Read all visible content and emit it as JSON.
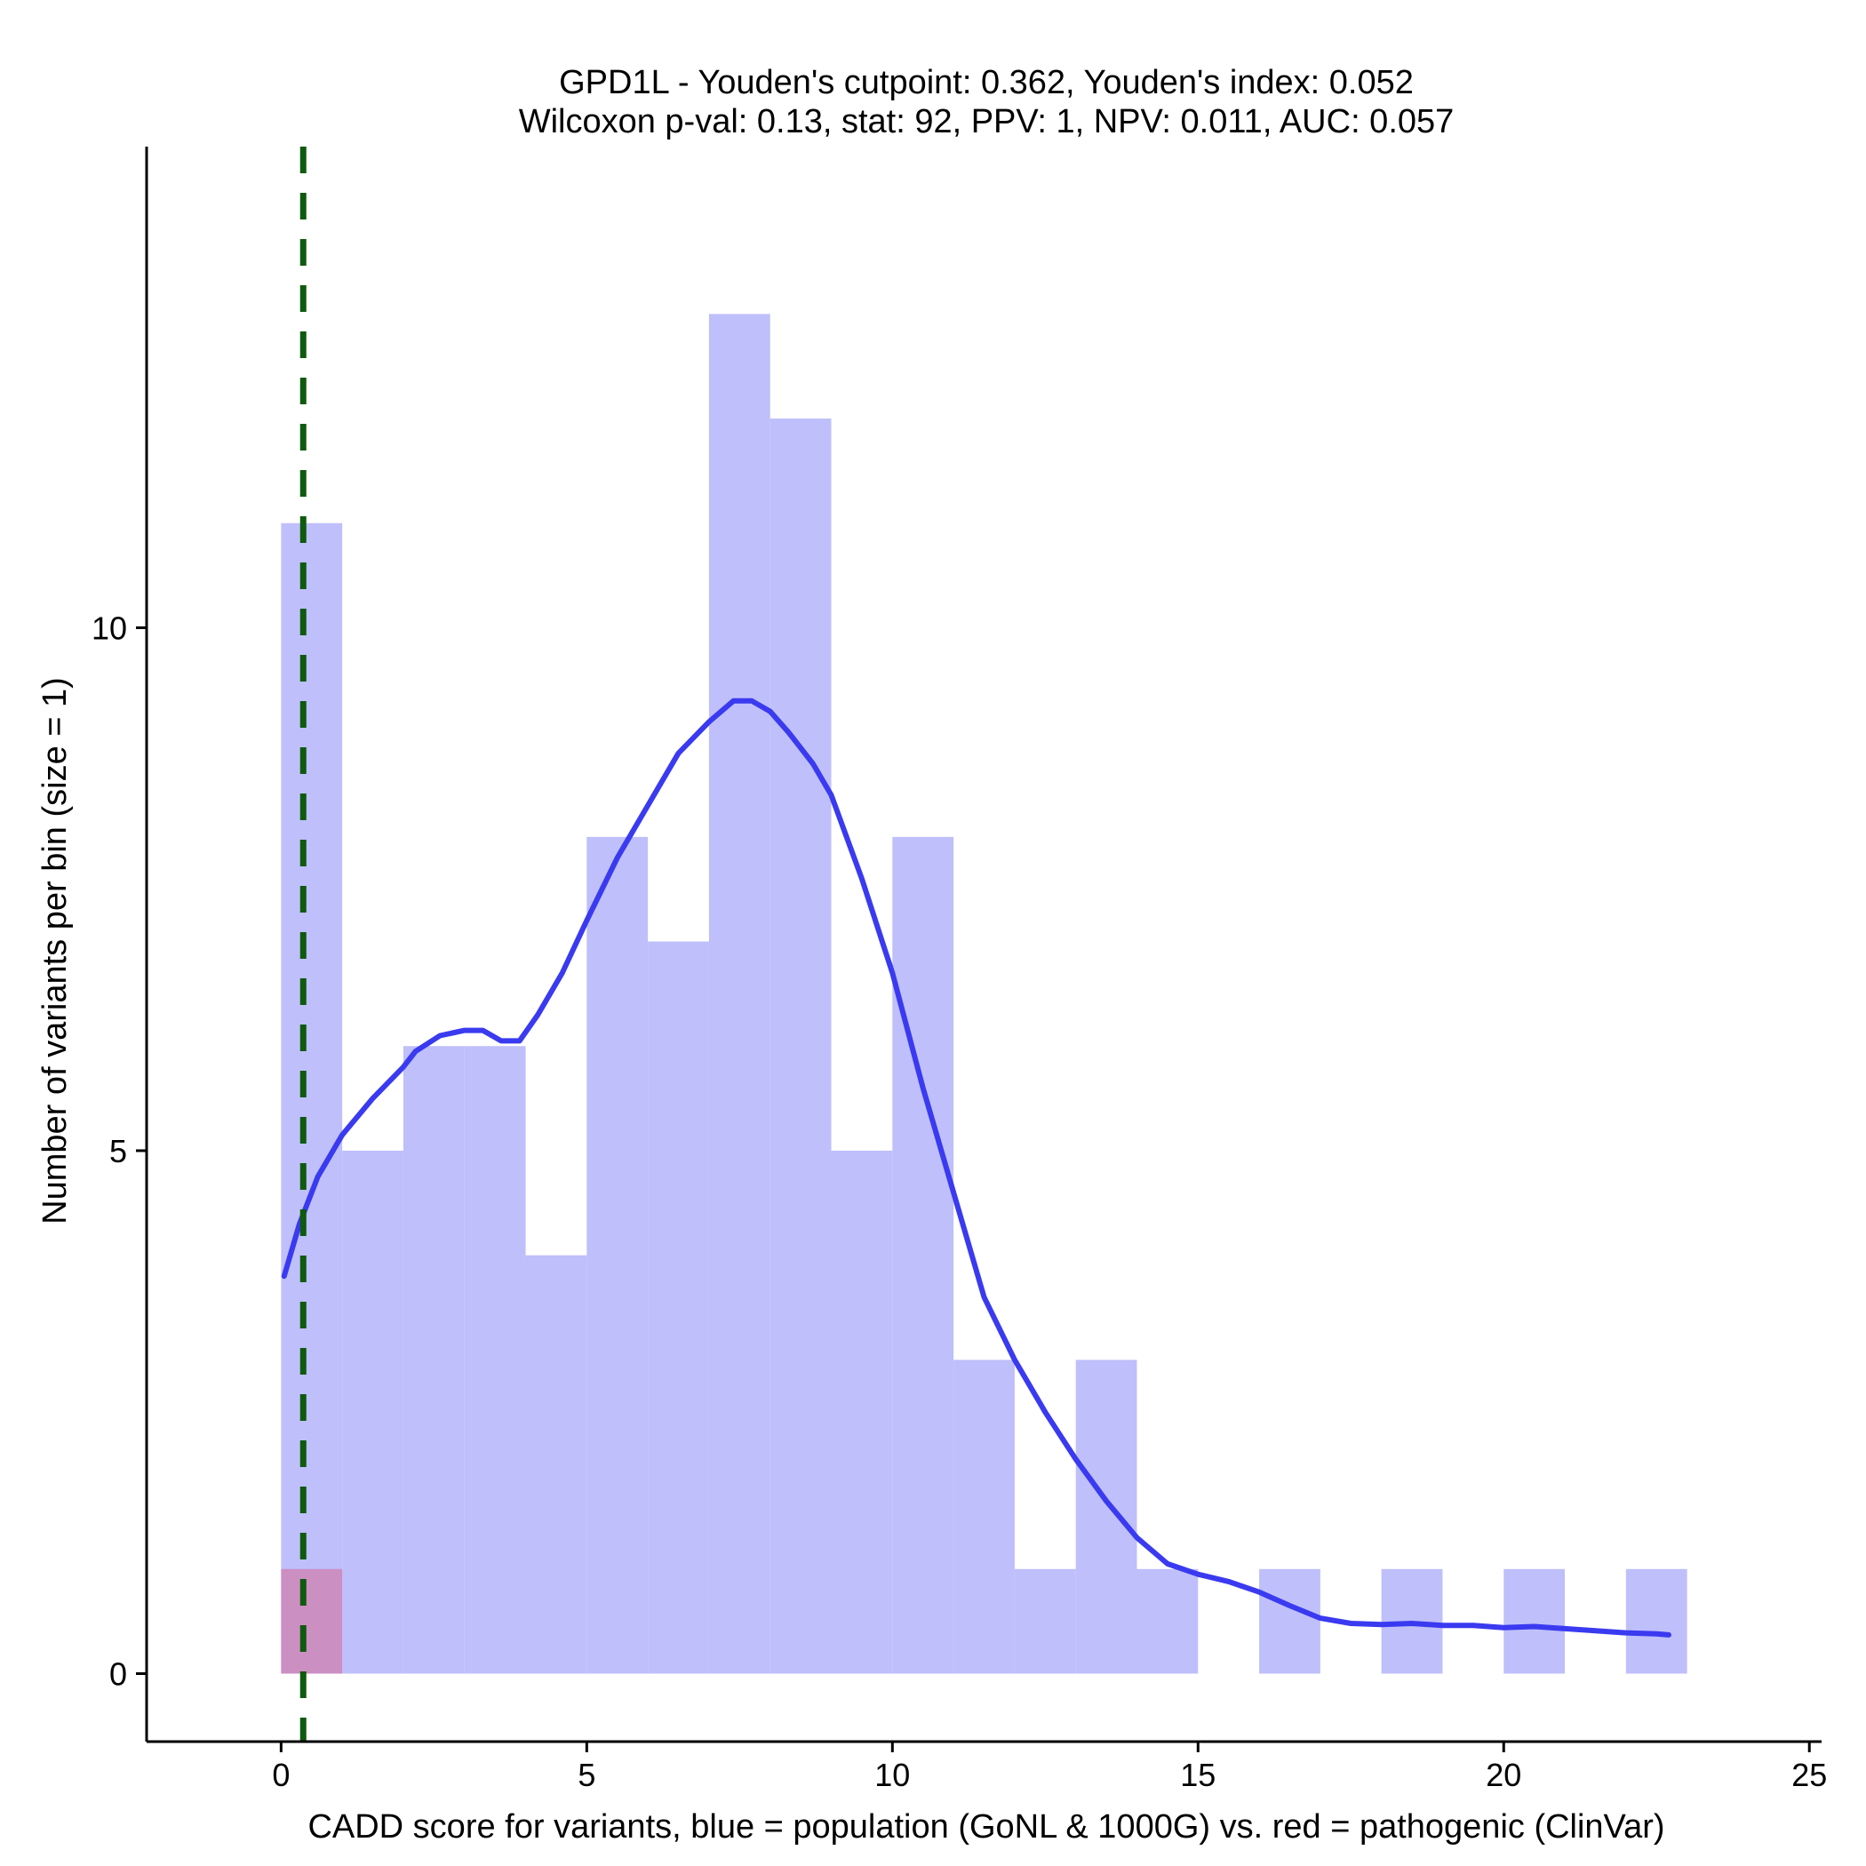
{
  "chart_data": {
    "type": "bar",
    "title": "GPD1L - Youden's cutpoint: 0.362, Youden's index: 0.052",
    "subtitle": "Wilcoxon p-val: 0.13, stat: 92, PPV: 1, NPV: 0.011, AUC: 0.057",
    "xlabel": "CADD score for variants, blue = population (GoNL & 1000G) vs. red = pathogenic (ClinVar)",
    "ylabel": "Number of variants per bin (size = 1)",
    "xlim": [
      -2.2,
      25.2
    ],
    "ylim": [
      -0.65,
      14.6
    ],
    "x_ticks": [
      "0",
      "5",
      "10",
      "15",
      "20",
      "25"
    ],
    "y_ticks": [
      "0",
      "5",
      "10"
    ],
    "x_tick_values": [
      0,
      5,
      10,
      15,
      20,
      25
    ],
    "y_tick_values": [
      0,
      5,
      10
    ],
    "grid": false,
    "bin_width": 1,
    "series": [
      {
        "color": "#bfbffb",
        "bins": [
          {
            "x0": 0,
            "count": 11
          },
          {
            "x0": 1,
            "count": 5
          },
          {
            "x0": 2,
            "count": 6
          },
          {
            "x0": 3,
            "count": 6
          },
          {
            "x0": 4,
            "count": 4
          },
          {
            "x0": 5,
            "count": 8
          },
          {
            "x0": 6,
            "count": 7
          },
          {
            "x0": 7,
            "count": 13
          },
          {
            "x0": 8,
            "count": 12
          },
          {
            "x0": 9,
            "count": 5
          },
          {
            "x0": 10,
            "count": 8
          },
          {
            "x0": 11,
            "count": 3
          },
          {
            "x0": 12,
            "count": 1
          },
          {
            "x0": 13,
            "count": 3
          },
          {
            "x0": 14,
            "count": 1
          },
          {
            "x0": 15,
            "count": 0
          },
          {
            "x0": 16,
            "count": 1
          },
          {
            "x0": 17,
            "count": 0
          },
          {
            "x0": 18,
            "count": 1
          },
          {
            "x0": 19,
            "count": 0
          },
          {
            "x0": 20,
            "count": 1
          },
          {
            "x0": 21,
            "count": 0
          },
          {
            "x0": 22,
            "count": 1
          }
        ]
      },
      {
        "color": "#cc8fc2",
        "bins": [
          {
            "x0": 0,
            "count": 1
          }
        ]
      }
    ],
    "density_curve": {
      "color": "#3a3af0",
      "points": [
        [
          0.05,
          3.8
        ],
        [
          0.3,
          4.3
        ],
        [
          0.6,
          4.75
        ],
        [
          1.0,
          5.15
        ],
        [
          1.5,
          5.5
        ],
        [
          2.0,
          5.8
        ],
        [
          2.2,
          5.95
        ],
        [
          2.6,
          6.1
        ],
        [
          3.0,
          6.15
        ],
        [
          3.3,
          6.15
        ],
        [
          3.6,
          6.05
        ],
        [
          3.9,
          6.05
        ],
        [
          4.2,
          6.3
        ],
        [
          4.6,
          6.7
        ],
        [
          5.0,
          7.2
        ],
        [
          5.5,
          7.8
        ],
        [
          6.0,
          8.3
        ],
        [
          6.5,
          8.8
        ],
        [
          7.0,
          9.1
        ],
        [
          7.4,
          9.3
        ],
        [
          7.7,
          9.3
        ],
        [
          8.0,
          9.2
        ],
        [
          8.3,
          9.0
        ],
        [
          8.7,
          8.7
        ],
        [
          9.0,
          8.4
        ],
        [
          9.5,
          7.6
        ],
        [
          10.0,
          6.7
        ],
        [
          10.5,
          5.6
        ],
        [
          11.0,
          4.6
        ],
        [
          11.5,
          3.6
        ],
        [
          12.0,
          3.0
        ],
        [
          12.5,
          2.5
        ],
        [
          13.0,
          2.05
        ],
        [
          13.5,
          1.65
        ],
        [
          14.0,
          1.3
        ],
        [
          14.5,
          1.05
        ],
        [
          15.0,
          0.95
        ],
        [
          15.5,
          0.88
        ],
        [
          16.0,
          0.78
        ],
        [
          16.5,
          0.65
        ],
        [
          17.0,
          0.53
        ],
        [
          17.5,
          0.48
        ],
        [
          18.0,
          0.47
        ],
        [
          18.5,
          0.48
        ],
        [
          19.0,
          0.46
        ],
        [
          19.5,
          0.46
        ],
        [
          20.0,
          0.44
        ],
        [
          20.5,
          0.45
        ],
        [
          21.0,
          0.43
        ],
        [
          21.5,
          0.41
        ],
        [
          22.0,
          0.39
        ],
        [
          22.5,
          0.38
        ],
        [
          22.7,
          0.37
        ]
      ]
    },
    "cutpoint_line": {
      "x": 0.362,
      "color": "#0e5a0e",
      "style": "dashed"
    }
  }
}
